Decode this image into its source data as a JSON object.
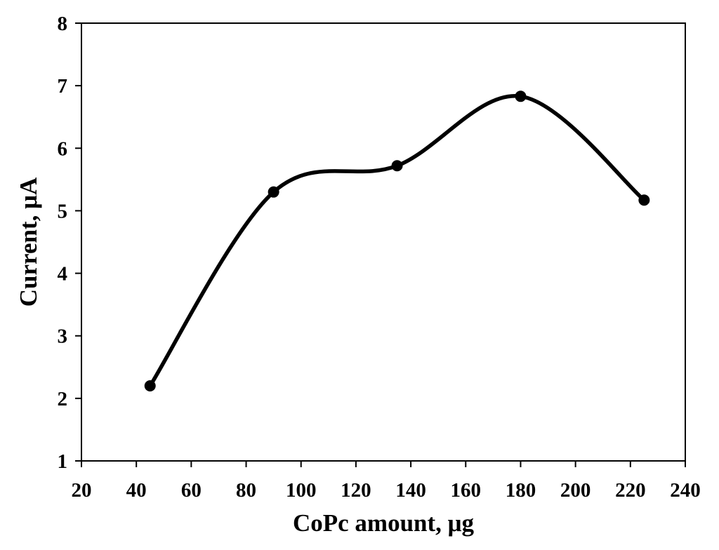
{
  "chart_data": {
    "type": "line",
    "title": "",
    "xlabel": "CoPc amount, μg",
    "ylabel": "Current, μA",
    "xlim": [
      20,
      240
    ],
    "ylim": [
      1,
      8
    ],
    "xticks": [
      20,
      40,
      60,
      80,
      100,
      120,
      140,
      160,
      180,
      200,
      220,
      240
    ],
    "yticks": [
      1,
      2,
      3,
      4,
      5,
      6,
      7,
      8
    ],
    "smooth": true,
    "markers": true,
    "grid": false,
    "legend": "none",
    "colors": {
      "line": "#000000",
      "marker": "#000000",
      "frame": "#000000"
    },
    "series": [
      {
        "x": [
          45,
          90,
          135,
          180,
          225
        ],
        "values": [
          2.2,
          5.3,
          5.72,
          6.83,
          5.17
        ]
      }
    ]
  }
}
